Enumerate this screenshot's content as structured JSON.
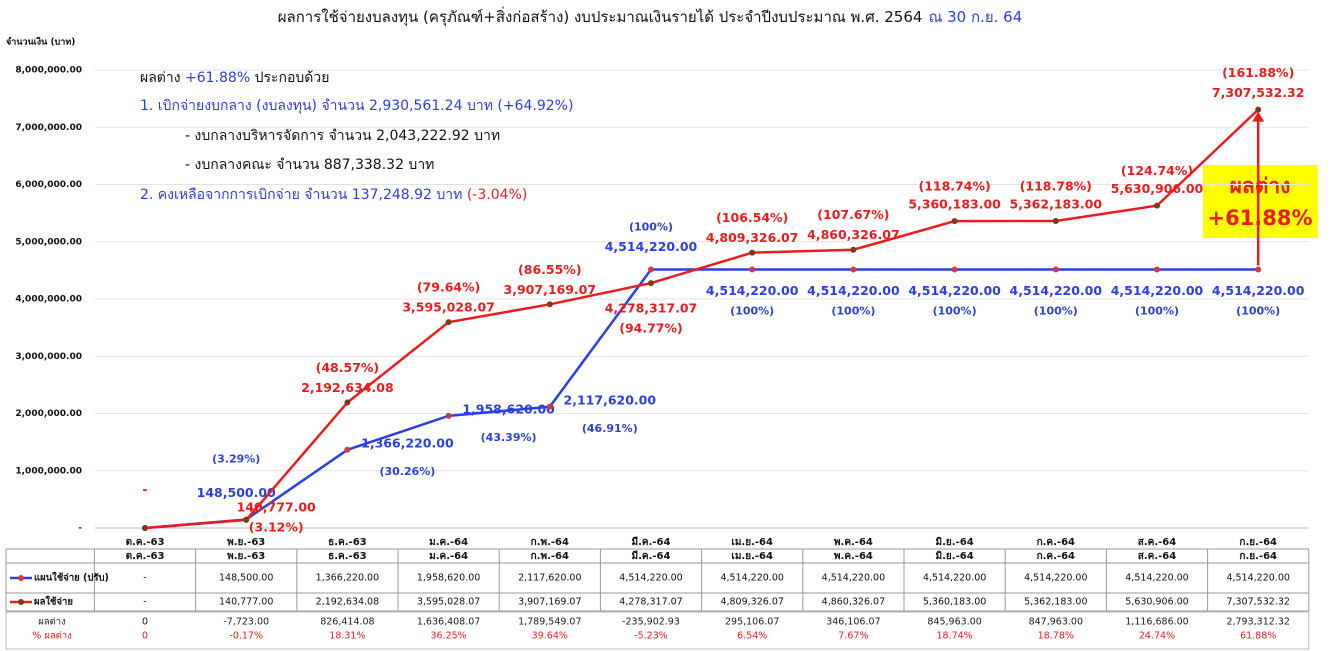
{
  "chart_data": {
    "type": "line",
    "title": "ผลการใช้จ่ายงบลงทุน (ครุภัณฑ์+สิ่งก่อสร้าง) งบประมาณเงินรายได้ ประจำปีงบประมาณ พ.ศ. 2564",
    "title_date": "ณ 30 ก.ย. 64",
    "y_label": "จำนวนเงิน (บาท)",
    "categories": [
      "ต.ค.-63",
      "พ.ย.-63",
      "ธ.ค.-63",
      "ม.ค.-64",
      "ก.พ.-64",
      "มี.ค.-64",
      "เม.ย.-64",
      "พ.ค.-64",
      "มิ.ย.-64",
      "ก.ค.-64",
      "ส.ค.-64",
      "ก.ย.-64"
    ],
    "ylim": [
      0,
      8000000
    ],
    "yticks": [
      {
        "value": 0,
        "label": "-"
      },
      {
        "value": 1000000,
        "label": "1,000,000.00"
      },
      {
        "value": 2000000,
        "label": "2,000,000.00"
      },
      {
        "value": 3000000,
        "label": "3,000,000.00"
      },
      {
        "value": 4000000,
        "label": "4,000,000.00"
      },
      {
        "value": 5000000,
        "label": "5,000,000.00"
      },
      {
        "value": 6000000,
        "label": "6,000,000.00"
      },
      {
        "value": 7000000,
        "label": "7,000,000.00"
      },
      {
        "value": 8000000,
        "label": "8,000,000.00"
      }
    ],
    "grid": true,
    "series": [
      {
        "name": "แผนใช้จ่าย (ปรับ)",
        "color": "#2b3fe6",
        "values": [
          0,
          148500,
          1366220,
          1958620,
          2117620,
          4514220,
          4514220,
          4514220,
          4514220,
          4514220,
          4514220,
          4514220
        ],
        "value_labels": [
          "-",
          "148,500.00",
          "1,366,220.00",
          "1,958,620.00",
          "2,117,620.00",
          "4,514,220.00",
          "4,514,220.00",
          "4,514,220.00",
          "4,514,220.00",
          "4,514,220.00",
          "4,514,220.00",
          "4,514,220.00"
        ],
        "pct_labels": [
          "-",
          "(3.29%)",
          "(30.26%)",
          "(43.39%)",
          "(46.91%)",
          "(100%)",
          "(100%)",
          "(100%)",
          "(100%)",
          "(100%)",
          "(100%)",
          "(100%)"
        ]
      },
      {
        "name": "ผลใช้จ่าย",
        "color": "#ec1c1c",
        "values": [
          0,
          140777,
          2192634.08,
          3595028.07,
          3907169.07,
          4278317.07,
          4809326.07,
          4860326.07,
          5360183,
          5362183,
          5630906,
          7307532.32
        ],
        "value_labels": [
          "-",
          "140,777.00",
          "2,192,634.08",
          "3,595,028.07",
          "3,907,169.07",
          "4,278,317.07",
          "4,809,326.07",
          "4,860,326.07",
          "5,360,183.00",
          "5,362,183.00",
          "5,630,906.00",
          "7,307,532.32"
        ],
        "pct_labels": [
          "-",
          "(3.12%)",
          "(48.57%)",
          "(79.64%)",
          "(86.55%)",
          "(94.77%)",
          "(106.54%)",
          "(107.67%)",
          "(118.74%)",
          "(118.78%)",
          "(124.74%)",
          "(161.88%)"
        ]
      }
    ],
    "table_rows": [
      {
        "name": "ผลต่าง",
        "values": [
          "0",
          "-7,723.00",
          "826,414.08",
          "1,636,408.07",
          "1,789,549.07",
          "-235,902.93",
          "295,106.07",
          "346,106.07",
          "845,963.00",
          "847,963.00",
          "1,116,686.00",
          "2,793,312.32"
        ]
      },
      {
        "name": "% ผลต่าง",
        "values": [
          "0",
          "-0.17%",
          "18.31%",
          "36.25%",
          "39.64%",
          "-5.23%",
          "6.54%",
          "7.67%",
          "18.74%",
          "18.78%",
          "24.74%",
          "61.88%"
        ]
      }
    ],
    "annotations": [
      [
        {
          "text": "ผลต่าง ",
          "color": "#111111"
        },
        {
          "text": "+61.88%",
          "color": "#2b3fe6"
        },
        {
          "text": " ประกอบด้วย",
          "color": "#111111"
        }
      ],
      [
        {
          "text": "1.     เบิกจ่ายงบกลาง (งบลงทุน) จำนวน 2,930,561.24 บาท (+64.92%)",
          "color": "#2b3fe6"
        }
      ],
      [
        {
          "text": "- งบกลางบริหารจัดการ จำนวน 2,043,222.92 บาท",
          "color": "#111111"
        }
      ],
      [
        {
          "text": "- งบกลางคณะ จำนวน 887,338.32 บาท",
          "color": "#111111"
        }
      ],
      [
        {
          "text": "2. คงเหลือจากการเบิกจ่าย จำนวน 137,248.92 บาท",
          "color": "#2b3fe6"
        },
        {
          "text": "  (-3.04%)",
          "color": "#ec1c1c"
        }
      ]
    ],
    "callout": [
      "ผลต่าง",
      "+61.88%"
    ]
  }
}
